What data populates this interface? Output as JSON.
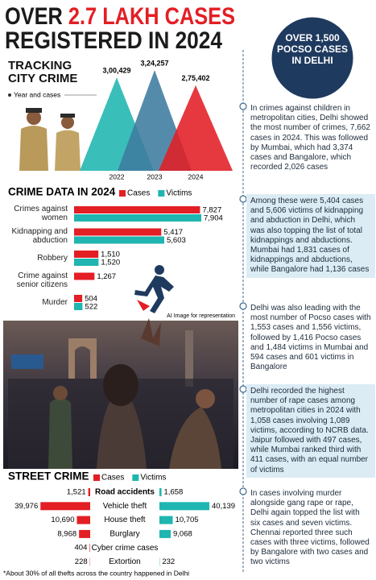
{
  "header": {
    "title_lead": "OVER",
    "title_highlight": "2.7 LAKH CASES",
    "title_end": "REGISTERED IN 2024"
  },
  "callout": "OVER 1,500 POCSO CASES IN DELHI",
  "chart_data": [
    {
      "type": "triangle",
      "title": "TRACKING CITY CRIME",
      "legend_label": "Year and cases",
      "categories": [
        "2022",
        "2023",
        "2024"
      ],
      "values": [
        300429,
        324257,
        275402
      ],
      "value_labels": [
        "3,00,429",
        "3,24,257",
        "2,75,402"
      ],
      "colors": [
        "#1fb5b0",
        "#3e7b9e",
        "#e31e24"
      ]
    },
    {
      "type": "hbar",
      "title": "CRIME DATA IN 2024",
      "categories": [
        "Crimes against women",
        "Kidnapping and abduction",
        "Robbery",
        "Crime against senior citizens",
        "Murder"
      ],
      "series": [
        {
          "name": "Cases",
          "color": "#e31e24",
          "values": [
            7827,
            5417,
            1510,
            1267,
            504
          ],
          "value_labels": [
            "7,827",
            "5,417",
            "1,510",
            "1,267",
            "504"
          ]
        },
        {
          "name": "Victims",
          "color": "#1fb5b0",
          "values": [
            7904,
            5603,
            1520,
            null,
            522
          ],
          "value_labels": [
            "7,904",
            "5,603",
            "1,520",
            null,
            "522"
          ]
        }
      ]
    },
    {
      "type": "diverging_bar",
      "title": "STREET CRIME",
      "categories": [
        "Road accidents",
        "Vehicle theft",
        "House theft",
        "Burglary",
        "Cyber crime cases",
        "Extortion"
      ],
      "series": [
        {
          "name": "Cases",
          "color": "#e31e24",
          "values": [
            1521,
            39976,
            10690,
            8968,
            404,
            228
          ],
          "value_labels": [
            "1,521",
            "39,976",
            "10,690",
            "8,968",
            "404",
            "228"
          ]
        },
        {
          "name": "Victims",
          "color": "#1fb5b0",
          "values": [
            1658,
            40139,
            10705,
            9068,
            null,
            232
          ],
          "value_labels": [
            "1,658",
            "40,139",
            "10,705",
            "9,068",
            null,
            "232"
          ]
        }
      ],
      "note": "*About 30% of all thefts across the country happened in Delhi"
    }
  ],
  "image_credit": "AI Image for representation",
  "sidebar": {
    "paragraphs": [
      "In crimes against children in metropolitan cities, Delhi showed the most number of crimes, 7,662 cases in 2024. This was followed by Mumbai, which had 3,374 cases and Bangalore, which recorded 2,026 cases",
      "Among these were 5,404 cases and 5,606 victims of kidnapping and abduction in Delhi, which was also topping the list of total kidnappings and abductions. Mumbai had 1,831 cases of kidnappings and abductions, while Bangalore had 1,136 cases",
      "Delhi was also leading with the most number of Pocso cases with 1,553 cases and 1,556 victims, followed by 1,416 Pocso cases and 1,484 victims in Mumbai and 594 cases and 601 victims in Bangalore",
      "Delhi recorded the highest number of rape cases among metropolitan cities in 2024 with 1,058 cases involving 1,089 victims, according to NCRB data. Jaipur followed with 497 cases, while Mumbai ranked third with 411 cases, with an equal number of victims",
      "In cases involving murder alongside gang rape or rape, Delhi again topped the list with six cases and seven victims. Chennai reported three such cases with three victims, followed by Bangalore with two cases and two victims"
    ]
  }
}
